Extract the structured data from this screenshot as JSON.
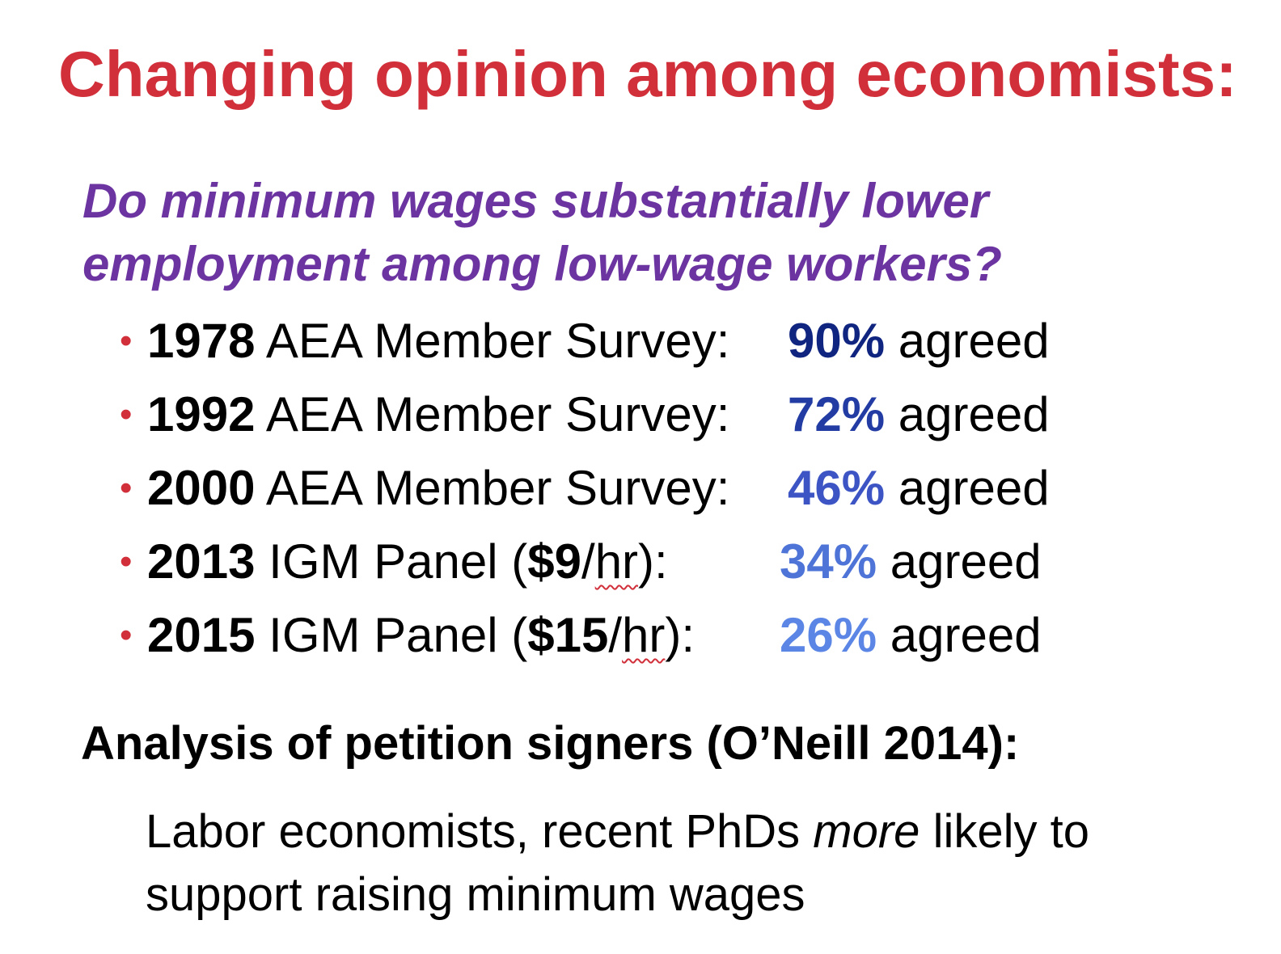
{
  "colors": {
    "title": "#d12f3a",
    "question": "#6b34a0",
    "bullet_dot": "#d12f3a",
    "text": "#000000"
  },
  "title": "Changing opinion among economists:",
  "question": {
    "line1": "Do minimum wages substantially lower",
    "line2": "employment among low-wage workers?"
  },
  "bullets": [
    {
      "year": "1978",
      "label": " AEA Member Survey:",
      "percent": "90%",
      "suffix": " agreed",
      "percent_color": "#0f2580"
    },
    {
      "year": "1992",
      "label": " AEA Member Survey:",
      "percent": "72%",
      "suffix": " agreed",
      "percent_color": "#223ca4"
    },
    {
      "year": "2000",
      "label": " AEA Member Survey:",
      "percent": "46%",
      "suffix": " agreed",
      "percent_color": "#3d55c4"
    },
    {
      "year": "2013",
      "label_pre": " IGM Panel (",
      "amount": "$9",
      "label_mid": "/",
      "unit": "hr",
      "label_post": "):",
      "percent": "34%",
      "suffix": " agreed",
      "percent_color": "#4f74d8"
    },
    {
      "year": "2015",
      "label_pre": " IGM Panel (",
      "amount": "$15",
      "label_mid": "/",
      "unit": "hr",
      "label_post": "):",
      "percent": "26%",
      "suffix": " agreed",
      "percent_color": "#5b86e6"
    }
  ],
  "bullet_symbol": "•",
  "subheading": "Analysis of petition signers (O’Neill 2014):",
  "body": {
    "line1_pre": "Labor economists, recent PhDs ",
    "line1_em": "more",
    "line1_post": " likely to",
    "line2": "support raising minimum wages"
  }
}
